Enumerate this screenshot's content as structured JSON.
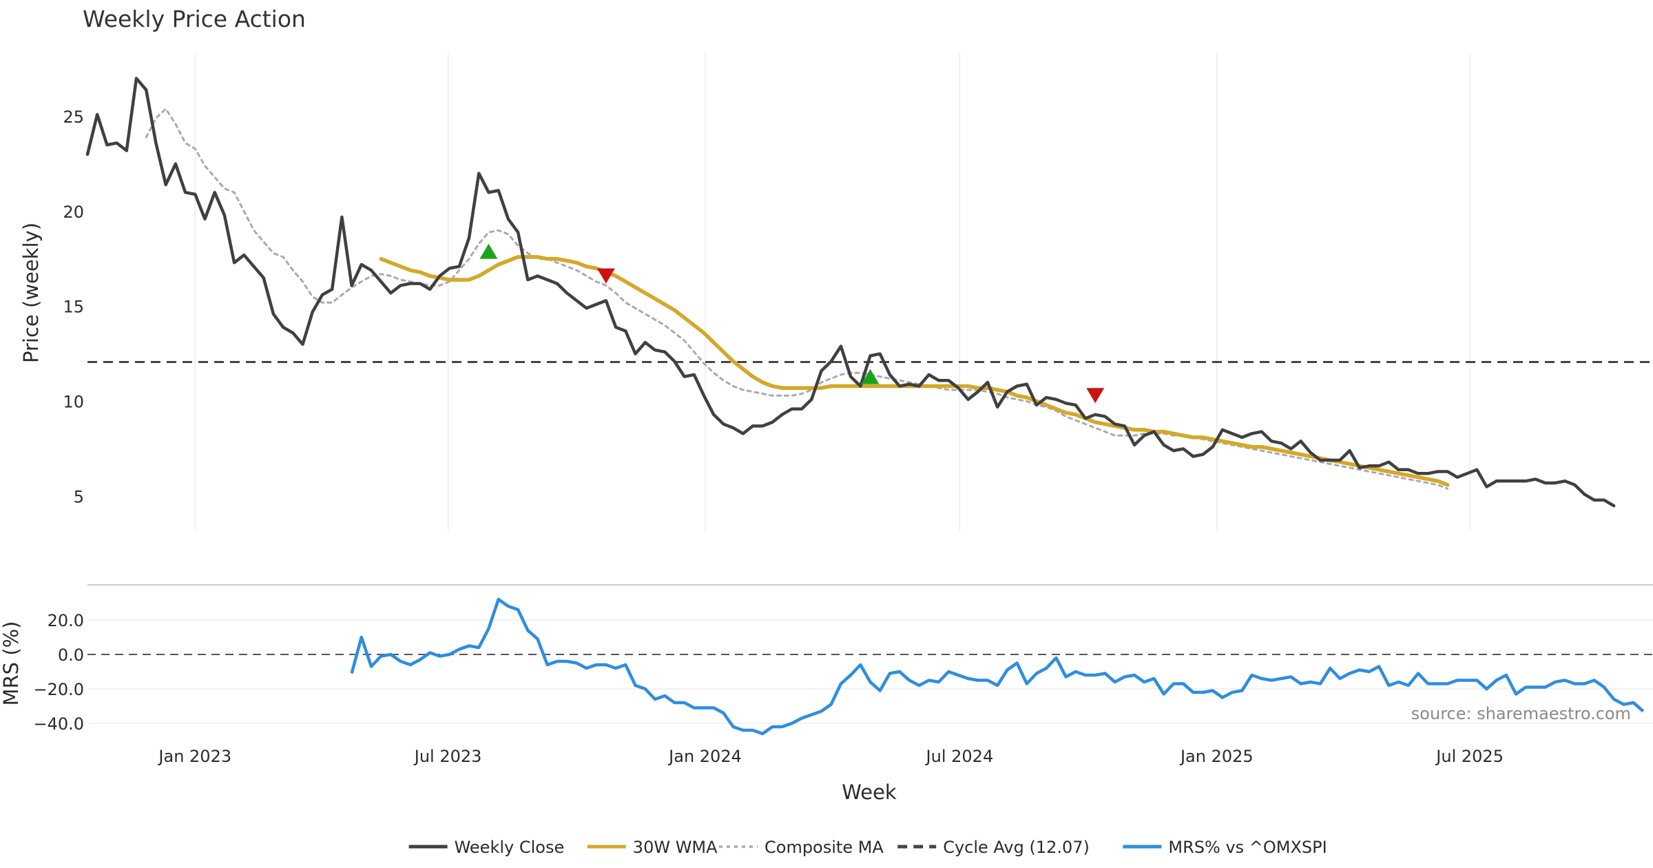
{
  "chart_data": {
    "type": "line",
    "title": "Weekly Price Action",
    "x_axis": {
      "label": "Week",
      "ticks": [
        "Jan 2023",
        "Jul 2023",
        "Jan 2024",
        "Jul 2024",
        "Jan 2025",
        "Jul 2025"
      ],
      "tick_dates": [
        "2023-01-01",
        "2023-07-01",
        "2024-01-01",
        "2024-07-01",
        "2025-01-01",
        "2025-07-01"
      ],
      "range": [
        "2022-10-16",
        "2025-11-09"
      ]
    },
    "price_panel": {
      "ylabel": "Price (weekly)",
      "ylim": [
        3.2,
        28.3
      ],
      "yticks": [
        5,
        10,
        15,
        20,
        25
      ],
      "grid": "vertical",
      "series": [
        {
          "name": "Weekly Close",
          "color": "#404040",
          "style": "solid",
          "start": "2022-10-16",
          "step_days": 7,
          "values": [
            23.0,
            25.1,
            23.5,
            23.6,
            23.2,
            27.0,
            26.4,
            23.6,
            21.4,
            22.5,
            21.0,
            20.9,
            19.6,
            21.0,
            19.8,
            17.3,
            17.7,
            17.1,
            16.5,
            14.6,
            13.9,
            13.6,
            13.0,
            14.7,
            15.6,
            15.9,
            19.7,
            16.1,
            17.2,
            16.9,
            16.3,
            15.7,
            16.1,
            16.2,
            16.2,
            15.9,
            16.6,
            17.0,
            17.1,
            18.6,
            22.0,
            21.0,
            21.1,
            19.6,
            18.9,
            16.4,
            16.6,
            16.4,
            16.2,
            15.7,
            15.3,
            14.9,
            15.1,
            15.3,
            13.9,
            13.7,
            12.5,
            13.1,
            12.7,
            12.6,
            12.1,
            11.3,
            11.4,
            10.3,
            9.3,
            8.8,
            8.6,
            8.3,
            8.7,
            8.7,
            8.9,
            9.3,
            9.6,
            9.6,
            10.1,
            11.6,
            12.1,
            12.9,
            11.3,
            10.8,
            12.4,
            12.5,
            11.4,
            10.8,
            10.9,
            10.8,
            11.4,
            11.1,
            11.1,
            10.7,
            10.1,
            10.5,
            11.0,
            9.7,
            10.5,
            10.8,
            10.9,
            9.8,
            10.2,
            10.1,
            9.9,
            9.8,
            9.1,
            9.3,
            9.2,
            8.8,
            8.7,
            7.7,
            8.2,
            8.4,
            7.7,
            7.4,
            7.5,
            7.1,
            7.2,
            7.6,
            8.5,
            8.3,
            8.1,
            8.3,
            8.4,
            7.9,
            7.8,
            7.5,
            7.9,
            7.3,
            6.9,
            6.9,
            6.9,
            7.4,
            6.5,
            6.6,
            6.6,
            6.8,
            6.4,
            6.4,
            6.2,
            6.2,
            6.3,
            6.3,
            6.0,
            6.2,
            6.4,
            5.5,
            5.8,
            5.8,
            5.8,
            5.8,
            5.9,
            5.7,
            5.7,
            5.8,
            5.6,
            5.1,
            4.8,
            4.8,
            4.5
          ]
        },
        {
          "name": "30W WMA",
          "color": "#d4a82a",
          "style": "solid",
          "start": "2023-05-14",
          "step_days": 7,
          "values": [
            17.5,
            17.3,
            17.1,
            16.9,
            16.8,
            16.6,
            16.5,
            16.4,
            16.4,
            16.4,
            16.6,
            16.9,
            17.2,
            17.4,
            17.6,
            17.6,
            17.6,
            17.5,
            17.5,
            17.4,
            17.3,
            17.1,
            17.0,
            16.8,
            16.6,
            16.3,
            16.0,
            15.7,
            15.4,
            15.1,
            14.8,
            14.4,
            14.0,
            13.6,
            13.1,
            12.6,
            12.1,
            11.7,
            11.3,
            11.0,
            10.8,
            10.7,
            10.7,
            10.7,
            10.7,
            10.7,
            10.8,
            10.8,
            10.8,
            10.8,
            10.8,
            10.8,
            10.8,
            10.8,
            10.8,
            10.8,
            10.8,
            10.8,
            10.8,
            10.8,
            10.8,
            10.7,
            10.7,
            10.6,
            10.5,
            10.3,
            10.2,
            10.0,
            9.8,
            9.6,
            9.4,
            9.3,
            9.1,
            8.9,
            8.8,
            8.7,
            8.6,
            8.5,
            8.5,
            8.4,
            8.4,
            8.3,
            8.2,
            8.1,
            8.1,
            8.0,
            7.9,
            7.8,
            7.7,
            7.6,
            7.6,
            7.5,
            7.4,
            7.3,
            7.2,
            7.1,
            7.0,
            6.9,
            6.8,
            6.7,
            6.6,
            6.5,
            6.4,
            6.3,
            6.2,
            6.1,
            6.0,
            5.9,
            5.8,
            5.6
          ]
        },
        {
          "name": "Composite MA",
          "color": "#aaaaaa",
          "style": "dotted",
          "start": "2022-11-27",
          "step_days": 7,
          "values": [
            23.9,
            24.9,
            25.4,
            24.6,
            23.6,
            23.3,
            22.4,
            21.8,
            21.2,
            21.0,
            20.0,
            19.0,
            18.4,
            17.8,
            17.6,
            16.9,
            16.3,
            15.5,
            15.2,
            15.2,
            15.6,
            16.0,
            16.3,
            16.6,
            16.7,
            16.6,
            16.4,
            16.3,
            16.2,
            16.1,
            16.1,
            16.3,
            16.9,
            17.5,
            18.3,
            18.9,
            19.0,
            18.8,
            18.2,
            17.8,
            17.5,
            17.5,
            17.3,
            17.1,
            16.9,
            16.6,
            16.3,
            16.1,
            15.7,
            15.2,
            14.9,
            14.6,
            14.3,
            14.0,
            13.6,
            13.2,
            12.6,
            12.0,
            11.5,
            11.1,
            10.8,
            10.6,
            10.5,
            10.4,
            10.3,
            10.3,
            10.3,
            10.4,
            10.6,
            11.0,
            11.2,
            11.4,
            11.5,
            11.5,
            11.4,
            11.3,
            11.2,
            11.1,
            11.0,
            10.9,
            10.8,
            10.7,
            10.6,
            10.6,
            10.6,
            10.6,
            10.5,
            10.4,
            10.2,
            10.1,
            10.0,
            9.8,
            9.7,
            9.5,
            9.2,
            9.0,
            8.8,
            8.6,
            8.4,
            8.2,
            8.2,
            8.2,
            8.3,
            8.3,
            8.3,
            8.2,
            8.2,
            8.1,
            8.0,
            7.9,
            7.8,
            7.7,
            7.6,
            7.5,
            7.4,
            7.3,
            7.2,
            7.1,
            7.0,
            6.9,
            6.8,
            6.7,
            6.6,
            6.5,
            6.4,
            6.3,
            6.2,
            6.1,
            6.0,
            5.9,
            5.8,
            5.7,
            5.6,
            5.4
          ]
        }
      ],
      "cycle_avg": {
        "name": "Cycle Avg (12.07)",
        "value": 12.07,
        "color": "#444444",
        "style": "dashed"
      },
      "markers": [
        {
          "type": "buy",
          "date": "2023-07-30",
          "value": 17.9,
          "color": "#1aa31a"
        },
        {
          "type": "sell",
          "date": "2023-10-22",
          "value": 16.6,
          "color": "#cc1111"
        },
        {
          "type": "buy",
          "date": "2024-04-28",
          "value": 11.3,
          "color": "#1aa31a"
        },
        {
          "type": "sell",
          "date": "2024-10-06",
          "value": 10.3,
          "color": "#cc1111"
        }
      ]
    },
    "mrs_panel": {
      "ylabel": "MRS (%)",
      "ylim": [
        -48,
        40
      ],
      "yticks": [
        20.0,
        0.0,
        -20.0,
        -40.0
      ],
      "ytick_labels": [
        "20.0",
        "0.0",
        "−20.0",
        "−40.0"
      ],
      "zero_line": "dashed",
      "series": [
        {
          "name": "MRS% vs ^OMXSPI",
          "color": "#2e8de0",
          "start": "2023-04-23",
          "step_days": 7,
          "values": [
            -11,
            10,
            -7,
            -1,
            0,
            -4,
            -6,
            -3,
            1,
            -1,
            0,
            3,
            5,
            4,
            15,
            32,
            28,
            26,
            14,
            9,
            -6,
            -4,
            -4,
            -5,
            -8,
            -6,
            -6,
            -8,
            -6,
            -18,
            -20,
            -26,
            -24,
            -28,
            -28,
            -31,
            -31,
            -31,
            -34,
            -42,
            -44,
            -44,
            -46,
            -42,
            -42,
            -40,
            -37,
            -35,
            -33,
            -29,
            -17,
            -12,
            -6,
            -16,
            -21,
            -11,
            -10,
            -15,
            -18,
            -15,
            -16,
            -10,
            -12,
            -14,
            -15,
            -15,
            -18,
            -9,
            -5,
            -17,
            -11,
            -8,
            -2,
            -13,
            -10,
            -12,
            -12,
            -11,
            -16,
            -13,
            -12,
            -16,
            -14,
            -23,
            -17,
            -17,
            -22,
            -22,
            -21,
            -25,
            -22,
            -21,
            -12,
            -14,
            -15,
            -14,
            -13,
            -17,
            -16,
            -17,
            -8,
            -14,
            -11,
            -9,
            -10,
            -7,
            -18,
            -16,
            -18,
            -11,
            -17,
            -17,
            -17,
            -15,
            -15,
            -15,
            -20,
            -15,
            -12,
            -23,
            -19,
            -19,
            -19,
            -16,
            -15,
            -17,
            -17,
            -15,
            -19,
            -26,
            -29,
            -28,
            -33
          ]
        }
      ]
    },
    "legend": {
      "placement": "bottom-center",
      "items": [
        {
          "label": "Weekly Close",
          "color": "#404040",
          "style": "solid"
        },
        {
          "label": "30W WMA",
          "color": "#d4a82a",
          "style": "solid"
        },
        {
          "label": "Composite MA",
          "color": "#aaaaaa",
          "style": "dotted"
        },
        {
          "label": "Cycle Avg (12.07)",
          "color": "#444444",
          "style": "dashed"
        },
        {
          "label": "MRS% vs ^OMXSPI",
          "color": "#2e8de0",
          "style": "solid"
        }
      ]
    },
    "source_note": "source: sharemaestro.com"
  }
}
